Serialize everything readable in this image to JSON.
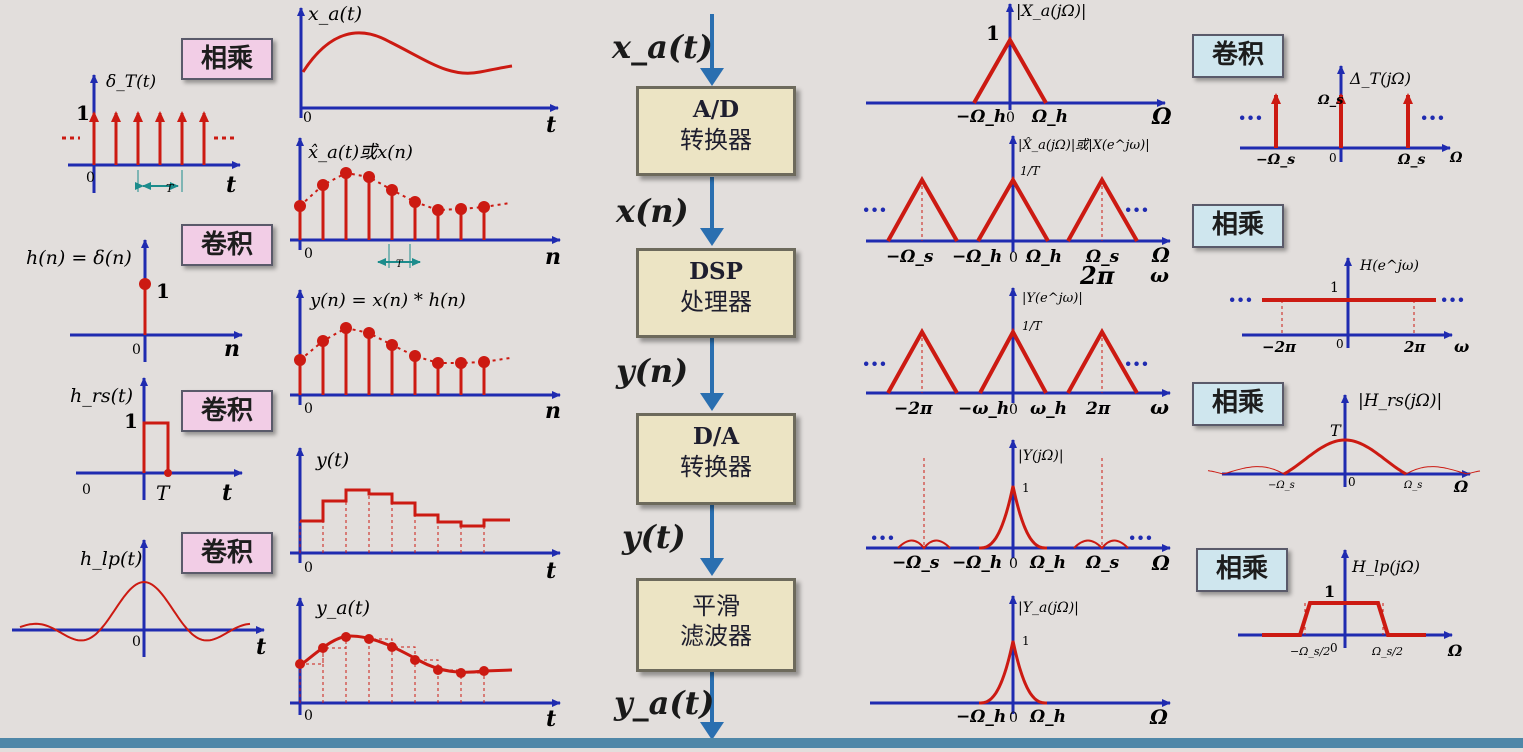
{
  "labels": {
    "mult1": "相乘",
    "conv1": "卷积",
    "conv2": "卷积",
    "conv3": "卷积",
    "conv_r1": "卷积",
    "mult_r1": "相乘",
    "mult_r2": "相乘",
    "mult_r3": "相乘"
  },
  "blocks": [
    {
      "line1": "A/D",
      "line2": "转换器"
    },
    {
      "line1": "DSP",
      "line2": "处理器"
    },
    {
      "line1": "D/A",
      "line2": "转换器"
    },
    {
      "line1": "平滑",
      "line2": "滤波器"
    }
  ],
  "signals": [
    "x_a(t)",
    "x(n)",
    "y(n)",
    "y(t)",
    "y_a(t)"
  ],
  "graph_text": {
    "delta_T": "δ_T(t)",
    "h_n_eq": "h(n) = δ(n)",
    "h_rs": "h_rs(t)",
    "h_lp": "h_lp(t)",
    "xa": "x_a(t)",
    "xhat": "x̂_a(t)或x(n)",
    "yconv": "y(n) = x(n) * h(n)",
    "yt": "y(t)",
    "ya": "y_a(t)",
    "Xa": "|X_a(jΩ)|",
    "Xhat": "|X̂_a(jΩ)|或|X(e^jω)|",
    "Yejw": "|Y(e^jω)|",
    "Yj": "|Y(jΩ)|",
    "Yaj": "|Y_a(jΩ)|",
    "DeltaT": "Δ_T(jΩ)",
    "Hejw": "H(e^jω)",
    "Hrs": "|H_rs(jΩ)|",
    "Hlp": "H_lp(jΩ)",
    "one": "1",
    "zero": "0",
    "T": "T",
    "t": "t",
    "n": "n",
    "Omega": "Ω",
    "omega": "ω",
    "twopi": "2π",
    "neg_twopi": "−2π",
    "Omega_s": "Ω_s",
    "neg_Omega_s": "−Ω_s",
    "Omega_h": "Ω_h",
    "neg_Omega_h": "−Ω_h",
    "omega_h": "ω_h",
    "neg_omega_h": "−ω_h",
    "one_over_T": "1/T",
    "Omega_s_half": "Ω_s/2",
    "neg_Omega_s_half": "−Ω_s/2",
    "dots": "···",
    "Omega_s_axis": "Ω_s",
    "big_twopi": "2π"
  },
  "colors": {
    "signal": "#cc1a12",
    "axis": "#1f2bb0",
    "arrow": "#2a6fb0",
    "teal": "#1c8c8c"
  }
}
